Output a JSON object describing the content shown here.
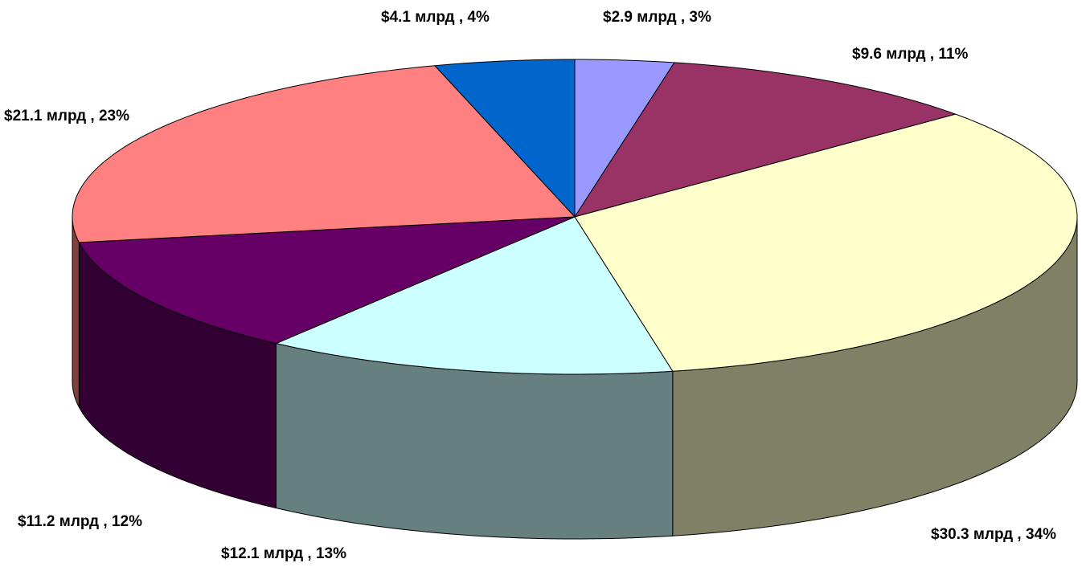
{
  "chart_data": {
    "type": "pie3d",
    "values": [
      2.9,
      9.6,
      30.3,
      12.1,
      11.2,
      21.1,
      4.1
    ],
    "value_labels": [
      "$2.9 млрд , 3%",
      "$9.6 млрд , 11%",
      "$30.3 млрд , 34%",
      "$12.1 млрд , 13%",
      "$11.2 млрд , 12%",
      "$21.1 млрд , 23%",
      "$4.1 млрд , 4%"
    ],
    "colors": [
      "#9999ff",
      "#993366",
      "#ffffcc",
      "#ccffff",
      "#660066",
      "#ff8080",
      "#0066cc"
    ]
  }
}
